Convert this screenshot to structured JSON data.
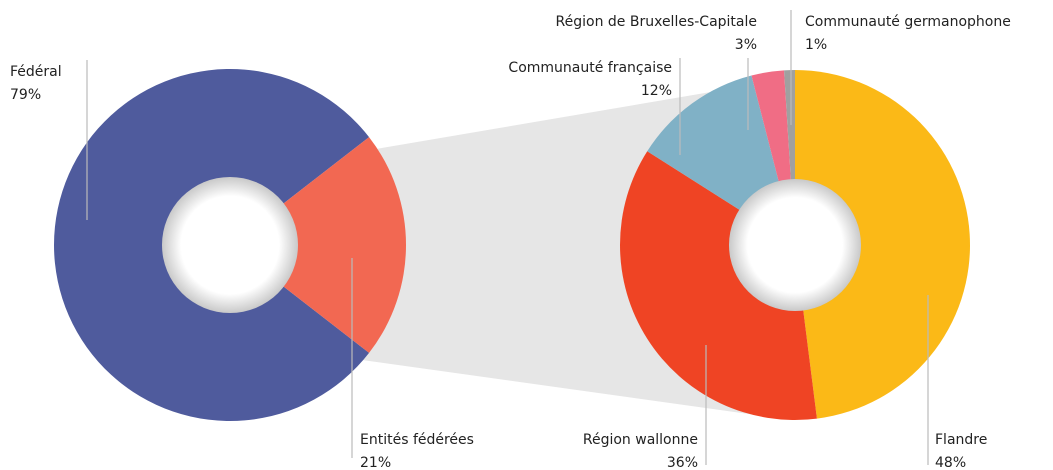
{
  "chart_data": [
    {
      "type": "pie",
      "categories": [
        "Fédéral",
        "Entités fédérées"
      ],
      "values": [
        79,
        21
      ],
      "value_labels": [
        "79%",
        "21%"
      ],
      "colors": [
        "#4f5b9d",
        "#f26852"
      ]
    },
    {
      "type": "pie",
      "categories": [
        "Flandre",
        "Région wallonne",
        "Communauté française",
        "Région de Bruxelles-Capitale",
        "Communauté germanophone"
      ],
      "values": [
        48,
        36,
        12,
        3,
        1
      ],
      "value_labels": [
        "48%",
        "36%",
        "12%",
        "3%",
        "1%"
      ],
      "colors": [
        "#fbb917",
        "#ef4424",
        "#80b1c6",
        "#f06d85",
        "#a0a0a0"
      ]
    }
  ]
}
